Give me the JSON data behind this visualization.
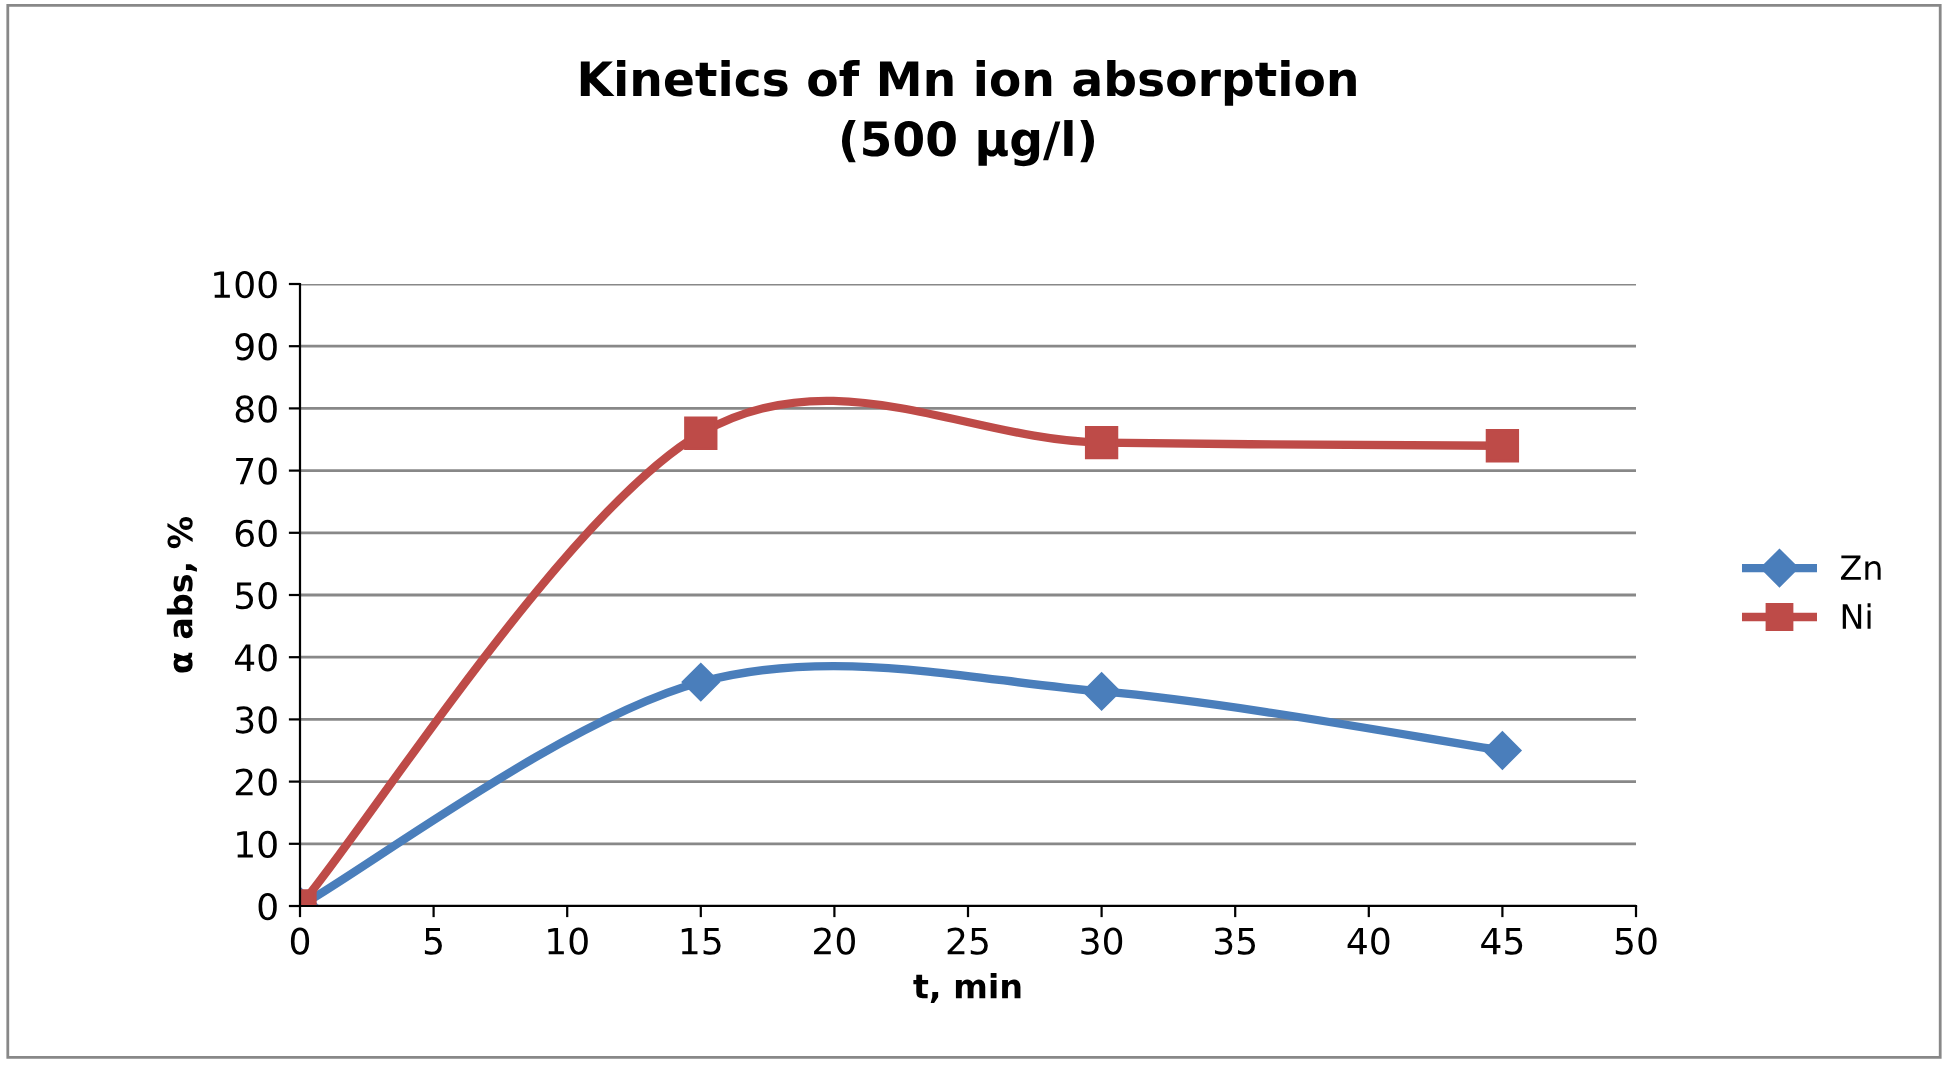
{
  "chart_data": {
    "type": "line",
    "title": "Kinetics of Mn ion absorption\n(500 µg/l)",
    "xlabel": "t, min",
    "ylabel": "α abs, %",
    "x": [
      0,
      15,
      30,
      45
    ],
    "series": [
      {
        "name": "Zn",
        "color": "#4a7ebb",
        "marker": "diamond",
        "values": [
          0,
          36,
          34.5,
          25
        ]
      },
      {
        "name": "Ni",
        "color": "#be4b48",
        "marker": "square",
        "values": [
          0,
          76,
          74.5,
          74
        ]
      }
    ],
    "xlim": [
      0,
      50
    ],
    "xticks": [
      0,
      5,
      10,
      15,
      20,
      25,
      30,
      35,
      40,
      45,
      50
    ],
    "ylim": [
      0,
      100
    ],
    "yticks": [
      0,
      10,
      20,
      30,
      40,
      50,
      60,
      70,
      80,
      90,
      100
    ],
    "grid": "y",
    "legend": "right",
    "line_style": "solid"
  }
}
